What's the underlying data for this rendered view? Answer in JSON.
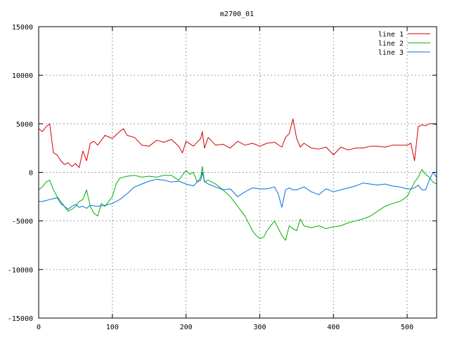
{
  "chart_data": {
    "type": "line",
    "title": "m2700_01",
    "xlabel": "",
    "ylabel": "",
    "xlim": [
      0,
      540
    ],
    "ylim": [
      -15000,
      15000
    ],
    "grid": true,
    "legend_position": "top-right",
    "x_ticks": [
      0,
      100,
      200,
      300,
      400,
      500
    ],
    "y_ticks": [
      -15000,
      -10000,
      -5000,
      0,
      5000,
      10000,
      15000
    ],
    "series": [
      {
        "name": "line 1",
        "color": "#d40000",
        "x": [
          0,
          5,
          10,
          15,
          20,
          25,
          30,
          35,
          40,
          45,
          50,
          55,
          60,
          65,
          70,
          75,
          80,
          90,
          100,
          110,
          115,
          120,
          130,
          140,
          150,
          160,
          170,
          180,
          190,
          195,
          200,
          210,
          220,
          222,
          225,
          230,
          240,
          250,
          260,
          270,
          280,
          290,
          300,
          310,
          320,
          330,
          335,
          340,
          345,
          350,
          355,
          360,
          370,
          380,
          390,
          400,
          410,
          420,
          430,
          440,
          450,
          460,
          470,
          480,
          490,
          500,
          505,
          510,
          515,
          520,
          525,
          530,
          535,
          540
        ],
        "y": [
          4500,
          4200,
          4700,
          5000,
          2000,
          1800,
          1200,
          800,
          1000,
          600,
          900,
          500,
          2200,
          1200,
          3000,
          3200,
          2800,
          3800,
          3500,
          4200,
          4500,
          3800,
          3600,
          2800,
          2700,
          3300,
          3100,
          3400,
          2700,
          2000,
          3200,
          2700,
          3500,
          4200,
          2500,
          3600,
          2800,
          2900,
          2500,
          3200,
          2800,
          3000,
          2700,
          3000,
          3100,
          2600,
          3600,
          4000,
          5500,
          3500,
          2600,
          3000,
          2500,
          2400,
          2600,
          1800,
          2600,
          2300,
          2500,
          2500,
          2700,
          2700,
          2600,
          2800,
          2800,
          2800,
          3000,
          1200,
          4700,
          4900,
          4800,
          5000,
          5000,
          4900
        ]
      },
      {
        "name": "line 2",
        "color": "#00b000",
        "x": [
          0,
          5,
          10,
          15,
          20,
          25,
          30,
          35,
          40,
          45,
          50,
          55,
          60,
          65,
          70,
          75,
          80,
          85,
          90,
          100,
          105,
          110,
          120,
          130,
          140,
          150,
          160,
          170,
          180,
          190,
          200,
          205,
          210,
          215,
          220,
          222,
          225,
          230,
          240,
          250,
          260,
          270,
          280,
          290,
          295,
          300,
          305,
          310,
          320,
          330,
          335,
          340,
          345,
          350,
          355,
          360,
          370,
          380,
          390,
          400,
          410,
          420,
          430,
          440,
          450,
          460,
          470,
          480,
          490,
          500,
          510,
          515,
          520,
          525,
          530,
          535,
          540
        ],
        "y": [
          -1800,
          -1500,
          -1000,
          -800,
          -1800,
          -2500,
          -3000,
          -3500,
          -4000,
          -3800,
          -3500,
          -3000,
          -2800,
          -1800,
          -3500,
          -4200,
          -4500,
          -3200,
          -3500,
          -2500,
          -1200,
          -600,
          -400,
          -300,
          -500,
          -400,
          -500,
          -300,
          -300,
          -800,
          200,
          -200,
          0,
          -1000,
          -500,
          600,
          -1000,
          -800,
          -1200,
          -1800,
          -2500,
          -3500,
          -4500,
          -6000,
          -6500,
          -6800,
          -6700,
          -6000,
          -5000,
          -6500,
          -7000,
          -5500,
          -5800,
          -6000,
          -4800,
          -5500,
          -5700,
          -5500,
          -5800,
          -5600,
          -5500,
          -5200,
          -5000,
          -4800,
          -4500,
          -4000,
          -3500,
          -3200,
          -3000,
          -2500,
          -1000,
          -500,
          300,
          -200,
          -500,
          -1000,
          -1200
        ]
      },
      {
        "name": "line 3",
        "color": "#0070e0",
        "x": [
          0,
          5,
          10,
          15,
          20,
          25,
          30,
          35,
          40,
          45,
          50,
          55,
          60,
          65,
          70,
          80,
          90,
          100,
          110,
          120,
          130,
          140,
          150,
          160,
          170,
          180,
          190,
          200,
          210,
          215,
          220,
          222,
          225,
          230,
          240,
          250,
          260,
          270,
          280,
          290,
          300,
          310,
          320,
          325,
          330,
          335,
          340,
          345,
          350,
          360,
          370,
          380,
          390,
          400,
          410,
          420,
          430,
          440,
          450,
          460,
          470,
          480,
          490,
          500,
          505,
          510,
          515,
          520,
          525,
          530,
          535,
          540
        ],
        "y": [
          -3000,
          -3000,
          -2900,
          -2800,
          -2700,
          -2600,
          -3200,
          -3500,
          -3800,
          -3500,
          -3300,
          -3600,
          -3500,
          -3700,
          -3400,
          -3500,
          -3400,
          -3200,
          -2800,
          -2200,
          -1500,
          -1200,
          -900,
          -700,
          -800,
          -1000,
          -900,
          -1200,
          -1400,
          -1000,
          -800,
          0,
          -900,
          -1200,
          -1500,
          -1800,
          -1700,
          -2500,
          -2000,
          -1600,
          -1700,
          -1700,
          -1500,
          -2200,
          -3600,
          -1800,
          -1600,
          -1800,
          -1800,
          -1500,
          -2000,
          -2300,
          -1700,
          -2000,
          -1800,
          -1600,
          -1400,
          -1100,
          -1200,
          -1300,
          -1200,
          -1400,
          -1500,
          -1700,
          -1700,
          -1600,
          -1300,
          -1800,
          -1800,
          -800,
          0,
          -500
        ]
      }
    ]
  }
}
